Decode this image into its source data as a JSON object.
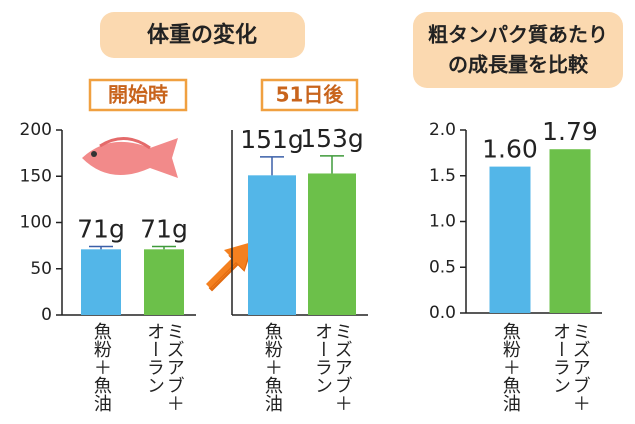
{
  "headers": [
    "体重の変化",
    [
      "粗タンパク質あたり",
      "の成長量を比較"
    ]
  ],
  "chart_data": [
    {
      "type": "bar",
      "title": "開始時",
      "categories": [
        "魚粉＋魚油",
        "ミズアブ＋オーラン"
      ],
      "values": [
        71,
        71
      ],
      "value_labels": [
        "71g",
        "71g"
      ],
      "errors": [
        3,
        3
      ],
      "colors": [
        "#53b6e8",
        "#6cc04a"
      ],
      "error_colors": [
        "#3a5fa8",
        "#3f9a3a"
      ],
      "ylim": [
        0,
        200
      ],
      "yticks": [
        0,
        50,
        100,
        150,
        200
      ]
    },
    {
      "type": "bar",
      "title": "51日後",
      "categories": [
        "魚粉＋魚油",
        "ミズアブ＋オーラン"
      ],
      "values": [
        151,
        153
      ],
      "value_labels": [
        "151g",
        "153g"
      ],
      "errors": [
        20,
        19
      ],
      "colors": [
        "#53b6e8",
        "#6cc04a"
      ],
      "error_colors": [
        "#3a5fa8",
        "#3f9a3a"
      ],
      "ylim": [
        0,
        200
      ]
    },
    {
      "type": "bar",
      "categories": [
        "魚粉＋魚油",
        "ミズアブ＋オーラン"
      ],
      "values": [
        1.6,
        1.79
      ],
      "value_labels": [
        "1.60",
        "1.79"
      ],
      "colors": [
        "#53b6e8",
        "#6cc04a"
      ],
      "ylim": [
        0,
        2
      ],
      "yticks": [
        {
          "value": 0,
          "label": "0.0"
        },
        0.5,
        {
          "value": 1,
          "label": "1.0"
        },
        1.5,
        {
          "value": 2,
          "label": "2.0"
        }
      ]
    }
  ]
}
